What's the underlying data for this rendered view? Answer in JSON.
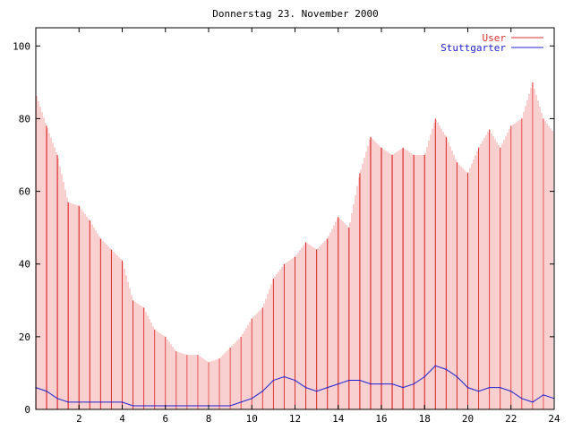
{
  "chart_data": {
    "type": "bar",
    "title": "Donnerstag 23. November 2000",
    "xlabel": "",
    "ylabel": "",
    "xlim": [
      0,
      24
    ],
    "ylim": [
      0,
      105
    ],
    "x_ticks": [
      2,
      4,
      6,
      8,
      10,
      12,
      14,
      16,
      18,
      20,
      22,
      24
    ],
    "x_tick_labels": [
      "2",
      "4",
      "6",
      "8",
      "10",
      "12",
      "14",
      "16",
      "18",
      "20",
      "22",
      "24"
    ],
    "y_ticks": [
      0,
      20,
      40,
      60,
      80,
      100
    ],
    "y_tick_labels": [
      "0",
      "20",
      "40",
      "60",
      "80",
      "100"
    ],
    "grid": false,
    "legend_position": "top-right",
    "series": [
      {
        "name": "User",
        "kind": "impulses",
        "color": "#e03030",
        "x": [
          0.0,
          0.5,
          1.0,
          1.5,
          2.0,
          2.5,
          3.0,
          3.5,
          4.0,
          4.5,
          5.0,
          5.5,
          6.0,
          6.5,
          7.0,
          7.5,
          8.0,
          8.5,
          9.0,
          9.5,
          10.0,
          10.5,
          11.0,
          11.5,
          12.0,
          12.5,
          13.0,
          13.5,
          14.0,
          14.5,
          15.0,
          15.5,
          16.0,
          16.5,
          17.0,
          17.5,
          18.0,
          18.5,
          19.0,
          19.5,
          20.0,
          20.5,
          21.0,
          21.5,
          22.0,
          22.5,
          23.0,
          23.5,
          24.0
        ],
        "values": [
          87,
          78,
          70,
          57,
          56,
          52,
          47,
          44,
          41,
          30,
          28,
          22,
          20,
          16,
          15,
          15,
          13,
          14,
          17,
          20,
          25,
          28,
          36,
          40,
          42,
          46,
          44,
          47,
          53,
          50,
          65,
          75,
          72,
          70,
          72,
          70,
          70,
          80,
          75,
          68,
          65,
          72,
          77,
          72,
          78,
          80,
          90,
          80,
          76
        ]
      },
      {
        "name": "Stuttgarter",
        "kind": "line",
        "color": "#2020d0",
        "x": [
          0.0,
          0.5,
          1.0,
          1.5,
          2.0,
          2.5,
          3.0,
          3.5,
          4.0,
          4.5,
          5.0,
          5.5,
          6.0,
          6.5,
          7.0,
          7.5,
          8.0,
          8.5,
          9.0,
          9.5,
          10.0,
          10.5,
          11.0,
          11.5,
          12.0,
          12.5,
          13.0,
          13.5,
          14.0,
          14.5,
          15.0,
          15.5,
          16.0,
          16.5,
          17.0,
          17.5,
          18.0,
          18.5,
          19.0,
          19.5,
          20.0,
          20.5,
          21.0,
          21.5,
          22.0,
          22.5,
          23.0,
          23.5,
          24.0
        ],
        "values": [
          6,
          5,
          3,
          2,
          2,
          2,
          2,
          2,
          2,
          1,
          1,
          1,
          1,
          1,
          1,
          1,
          1,
          1,
          1,
          2,
          3,
          5,
          8,
          9,
          8,
          6,
          5,
          6,
          7,
          8,
          8,
          7,
          7,
          7,
          6,
          7,
          9,
          12,
          11,
          9,
          6,
          5,
          6,
          6,
          5,
          3,
          2,
          4,
          3
        ]
      }
    ]
  }
}
